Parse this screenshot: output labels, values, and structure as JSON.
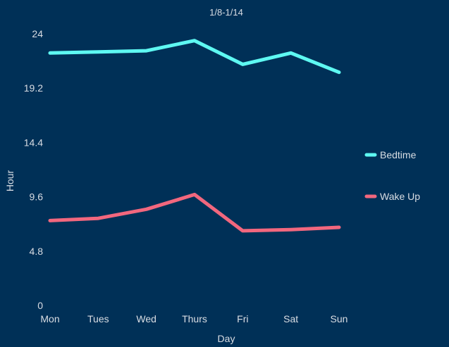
{
  "chart_data": {
    "type": "line",
    "title": "1/8-1/14",
    "xlabel": "Day",
    "ylabel": "Hour",
    "categories": [
      "Mon",
      "Tues",
      "Wed",
      "Thurs",
      "Fri",
      "Sat",
      "Sun"
    ],
    "yticks": [
      "0",
      "4.8",
      "9.6",
      "14.4",
      "19.2",
      "24"
    ],
    "ylim": [
      0,
      24
    ],
    "grid": false,
    "legend_position": "right",
    "series": [
      {
        "name": "Bedtime",
        "color": "#5ef8f2",
        "values": [
          22.3,
          22.4,
          22.5,
          23.4,
          21.3,
          22.3,
          20.6
        ]
      },
      {
        "name": "Wake Up",
        "color": "#f2677e",
        "values": [
          7.5,
          7.7,
          8.5,
          9.8,
          6.6,
          6.7,
          6.9
        ]
      }
    ]
  }
}
